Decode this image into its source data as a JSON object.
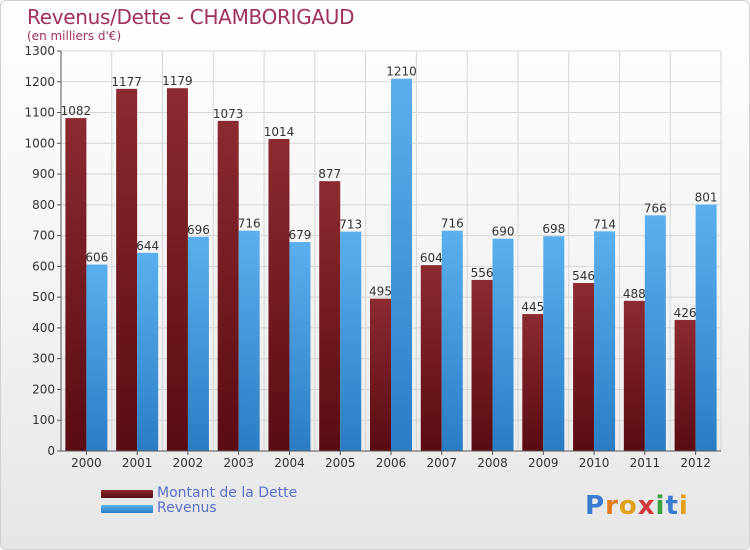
{
  "header": {
    "title": "Revenus/Dette - CHAMBORIGAUD",
    "subtitle": "(en milliers d'€)"
  },
  "colors": {
    "title": "#a0305e",
    "debt": "#7b1a22",
    "revenue": "#3a9ae0",
    "legend_text": "#5b6ec8"
  },
  "chart_data": {
    "type": "bar",
    "title": "Revenus/Dette - CHAMBORIGAUD",
    "subtitle": "(en milliers d'€)",
    "categories": [
      "2000",
      "2001",
      "2002",
      "2003",
      "2004",
      "2005",
      "2006",
      "2007",
      "2008",
      "2009",
      "2010",
      "2011",
      "2012"
    ],
    "series": [
      {
        "name": "Montant de la Dette",
        "values": [
          1082,
          1177,
          1179,
          1073,
          1014,
          877,
          495,
          604,
          556,
          445,
          546,
          488,
          426
        ]
      },
      {
        "name": "Revenus",
        "values": [
          606,
          644,
          696,
          716,
          679,
          713,
          1210,
          716,
          690,
          698,
          714,
          766,
          801
        ]
      }
    ],
    "ylim": [
      0,
      1300
    ],
    "yticks": [
      0,
      100,
      200,
      300,
      400,
      500,
      600,
      700,
      800,
      900,
      1000,
      1100,
      1200,
      1300
    ],
    "xlabel": "",
    "ylabel": "",
    "grid": true,
    "legend": "bottom-left"
  },
  "legend": {
    "items": [
      {
        "label": "Montant de la Dette"
      },
      {
        "label": "Revenus"
      }
    ]
  },
  "logo": {
    "letters": [
      "P",
      "r",
      "o",
      "x",
      "i",
      "t",
      "i"
    ],
    "letter_colors": [
      "#3a7ad0",
      "#e07a1a",
      "#e0a01a",
      "#d03a3a",
      "#3aa03a",
      "#3a7ad0",
      "#e0a01a"
    ]
  }
}
